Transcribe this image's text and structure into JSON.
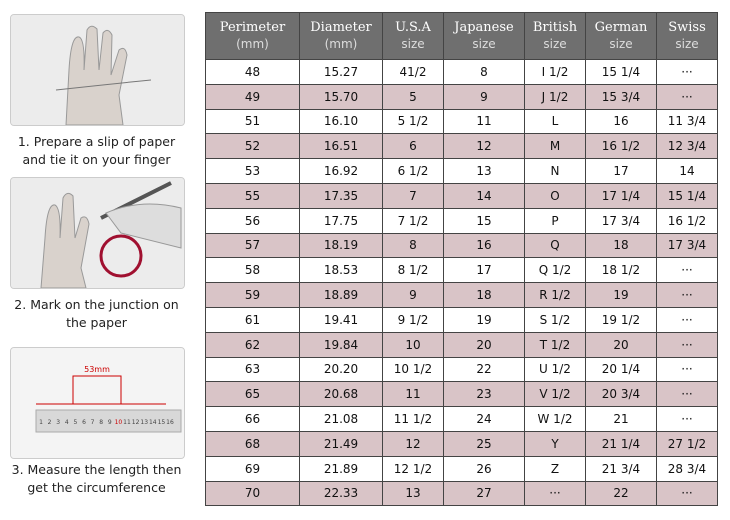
{
  "steps": [
    {
      "caption": [
        "1. Prepare a slip of paper",
        "and tie it on your finger"
      ]
    },
    {
      "caption": [
        "2. Mark on the junction on",
        "the paper"
      ]
    },
    {
      "caption": [
        "3. Measure the length then",
        "get the circumference"
      ],
      "measure": "53mm",
      "ruler": [
        "1",
        "2",
        "3",
        "4",
        "5",
        "6",
        "7",
        "8",
        "9",
        "10",
        "11",
        "12",
        "13",
        "14",
        "15",
        "16"
      ]
    }
  ],
  "table": {
    "columns": [
      {
        "name": "Perimeter",
        "unit": "(mm)"
      },
      {
        "name": "Diameter",
        "unit": "(mm)"
      },
      {
        "name": "U.S.A",
        "unit": "size"
      },
      {
        "name": "Japanese",
        "unit": "size"
      },
      {
        "name": "British",
        "unit": "size"
      },
      {
        "name": "German",
        "unit": "size"
      },
      {
        "name": "Swiss",
        "unit": "size"
      }
    ],
    "rows": [
      [
        "48",
        "15.27",
        "41/2",
        "8",
        "I 1/2",
        "15 1/4",
        "···"
      ],
      [
        "49",
        "15.70",
        "5",
        "9",
        "J 1/2",
        "15 3/4",
        "···"
      ],
      [
        "51",
        "16.10",
        "5 1/2",
        "11",
        "L",
        "16",
        "11 3/4"
      ],
      [
        "52",
        "16.51",
        "6",
        "12",
        "M",
        "16 1/2",
        "12 3/4"
      ],
      [
        "53",
        "16.92",
        "6 1/2",
        "13",
        "N",
        "17",
        "14"
      ],
      [
        "55",
        "17.35",
        "7",
        "14",
        "O",
        "17 1/4",
        "15 1/4"
      ],
      [
        "56",
        "17.75",
        "7 1/2",
        "15",
        "P",
        "17 3/4",
        "16 1/2"
      ],
      [
        "57",
        "18.19",
        "8",
        "16",
        "Q",
        "18",
        "17 3/4"
      ],
      [
        "58",
        "18.53",
        "8 1/2",
        "17",
        "Q 1/2",
        "18 1/2",
        "···"
      ],
      [
        "59",
        "18.89",
        "9",
        "18",
        "R 1/2",
        "19",
        "···"
      ],
      [
        "61",
        "19.41",
        "9 1/2",
        "19",
        "S 1/2",
        "19 1/2",
        "···"
      ],
      [
        "62",
        "19.84",
        "10",
        "20",
        "T 1/2",
        "20",
        "···"
      ],
      [
        "63",
        "20.20",
        "10 1/2",
        "22",
        "U 1/2",
        "20 1/4",
        "···"
      ],
      [
        "65",
        "20.68",
        "11",
        "23",
        "V 1/2",
        "20 3/4",
        "···"
      ],
      [
        "66",
        "21.08",
        "11 1/2",
        "24",
        "W 1/2",
        "21",
        "···"
      ],
      [
        "68",
        "21.49",
        "12",
        "25",
        "Y",
        "21 1/4",
        "27 1/2"
      ],
      [
        "69",
        "21.89",
        "12 1/2",
        "26",
        "Z",
        "21 3/4",
        "28 3/4"
      ],
      [
        "70",
        "22.33",
        "13",
        "27",
        "···",
        "22",
        "···"
      ]
    ]
  }
}
